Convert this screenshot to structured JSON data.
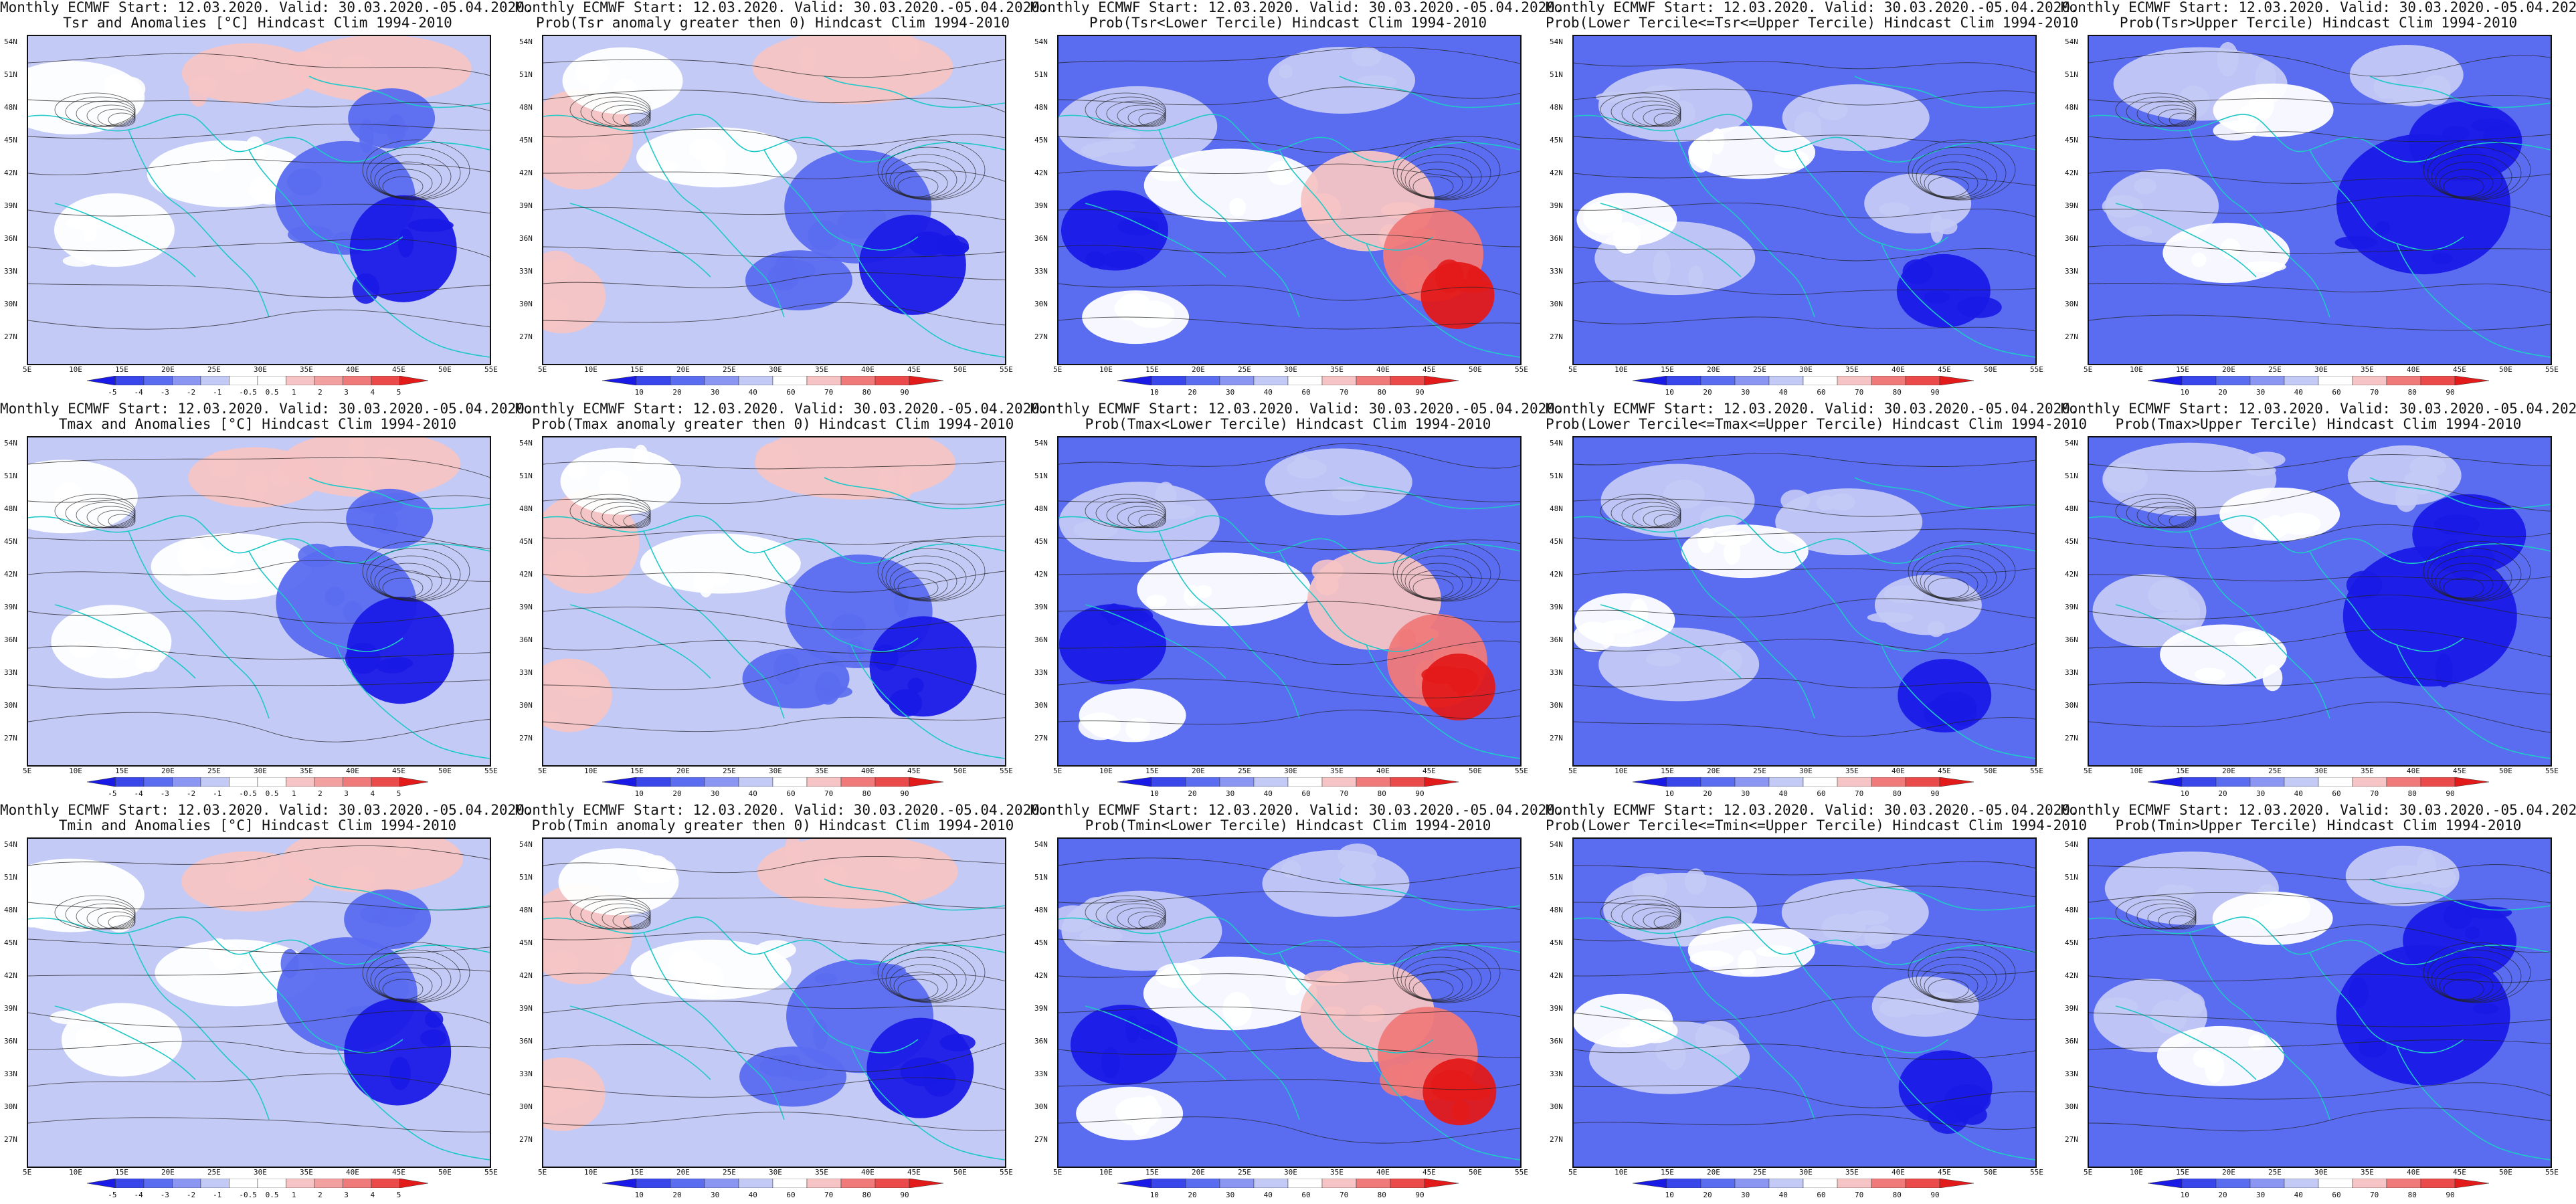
{
  "figure": {
    "header_line": "Monthly ECMWF Start: 12.03.2020. Valid: 30.03.2020.-05.04.2020.",
    "lat_labels": [
      "54N",
      "51N",
      "48N",
      "45N",
      "42N",
      "39N",
      "36N",
      "33N",
      "30N",
      "27N"
    ],
    "lon_labels": [
      "5E",
      "10E",
      "15E",
      "20E",
      "25E",
      "30E",
      "35E",
      "40E",
      "45E",
      "50E",
      "55E"
    ],
    "anomaly_ticks": [
      "-5",
      "-4",
      "-3",
      "-2",
      "-1",
      "-0.5",
      "0.5",
      "1",
      "2",
      "3",
      "4",
      "5"
    ],
    "prob_ticks": [
      "10",
      "20",
      "30",
      "40",
      "60",
      "70",
      "80",
      "90"
    ],
    "colors": {
      "deep_blue": "#1a1ae6",
      "mid_blue": "#5a6cf0",
      "light_blue": "#c4caf6",
      "white": "#ffffff",
      "light_red": "#f6c4c4",
      "mid_red": "#f07a7a",
      "deep_red": "#e31a1a",
      "coast": "#20c8c8",
      "contour": "#222222"
    }
  },
  "panels": [
    {
      "subtitle": "Tsr and Anomalies [°C] Hindcast Clim 1994-2010",
      "cbar": "anomaly",
      "pattern": "anom"
    },
    {
      "subtitle": "Prob(Tsr anomaly greater then 0) Hindcast Clim 1994-2010",
      "cbar": "prob",
      "pattern": "probgt"
    },
    {
      "subtitle": "Prob(Tsr<Lower Tercile) Hindcast Clim 1994-2010",
      "cbar": "prob",
      "pattern": "lower"
    },
    {
      "subtitle": "Prob(Lower Tercile<=Tsr<=Upper Tercile) Hindcast Clim 1994-2010",
      "cbar": "prob",
      "pattern": "middle"
    },
    {
      "subtitle": "Prob(Tsr>Upper Tercile) Hindcast Clim 1994-2010",
      "cbar": "prob",
      "pattern": "upper"
    },
    {
      "subtitle": "Tmax and Anomalies [°C] Hindcast Clim 1994-2010",
      "cbar": "anomaly",
      "pattern": "anom"
    },
    {
      "subtitle": "Prob(Tmax anomaly greater then 0) Hindcast Clim 1994-2010",
      "cbar": "prob",
      "pattern": "probgt"
    },
    {
      "subtitle": "Prob(Tmax<Lower Tercile) Hindcast Clim 1994-2010",
      "cbar": "prob",
      "pattern": "lower"
    },
    {
      "subtitle": "Prob(Lower Tercile<=Tmax<=Upper Tercile) Hindcast Clim 1994-2010",
      "cbar": "prob",
      "pattern": "middle"
    },
    {
      "subtitle": "Prob(Tmax>Upper Tercile) Hindcast Clim 1994-2010",
      "cbar": "prob",
      "pattern": "upper"
    },
    {
      "subtitle": "Tmin and Anomalies [°C] Hindcast Clim 1994-2010",
      "cbar": "anomaly",
      "pattern": "anom"
    },
    {
      "subtitle": "Prob(Tmin anomaly greater then 0) Hindcast Clim 1994-2010",
      "cbar": "prob",
      "pattern": "probgt"
    },
    {
      "subtitle": "Prob(Tmin<Lower Tercile) Hindcast Clim 1994-2010",
      "cbar": "prob",
      "pattern": "lower"
    },
    {
      "subtitle": "Prob(Lower Tercile<=Tmin<=Upper Tercile) Hindcast Clim 1994-2010",
      "cbar": "prob",
      "pattern": "middle"
    },
    {
      "subtitle": "Prob(Tmin>Upper Tercile) Hindcast Clim 1994-2010",
      "cbar": "prob",
      "pattern": "upper"
    }
  ]
}
